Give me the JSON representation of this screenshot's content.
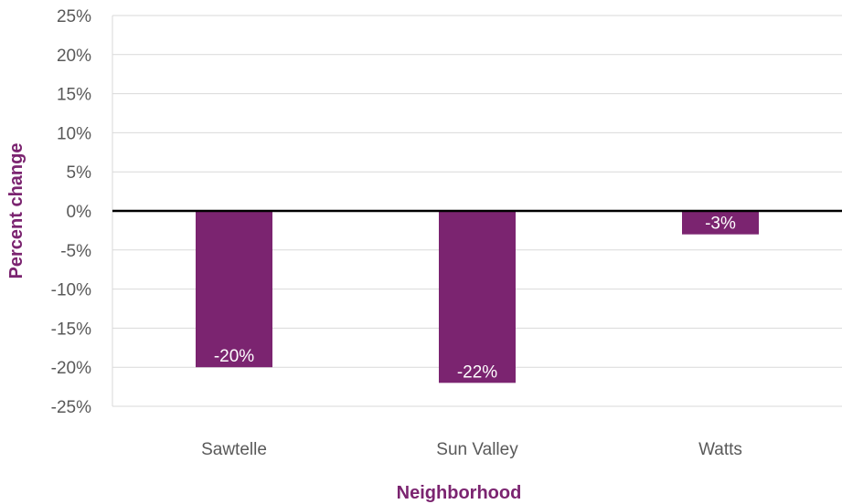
{
  "chart_data": {
    "type": "bar",
    "categories": [
      "Sawtelle",
      "Sun Valley",
      "Watts"
    ],
    "values": [
      -20,
      -22,
      -3
    ],
    "data_labels": [
      "-20%",
      "-22%",
      "-3%"
    ],
    "xlabel": "Neighborhood",
    "ylabel": "Percent change",
    "ylim": [
      -25,
      25
    ],
    "yticks": [
      25,
      20,
      15,
      10,
      5,
      0,
      -5,
      -10,
      -15,
      -20,
      -25
    ],
    "ytick_labels": [
      "25%",
      "20%",
      "15%",
      "10%",
      "5%",
      "0%",
      "-5%",
      "-10%",
      "-15%",
      "-20%",
      "-25%"
    ],
    "grid": true,
    "legend": "none",
    "bar_color": "#7b2470",
    "title_color": "#7b2470",
    "zero_line_color": "#000000",
    "gridline_color": "#d9d9d9"
  }
}
